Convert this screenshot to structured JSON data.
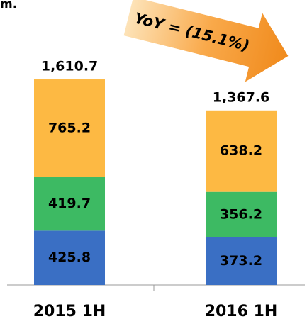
{
  "chart_data": {
    "type": "stacked_bar",
    "unit": "m.",
    "annotation": "YoY = (15.1%)",
    "categories": [
      "2015 1H",
      "2016 1H"
    ],
    "series": [
      {
        "color": "#3a6fc4",
        "values": [
          425.8,
          373.2
        ]
      },
      {
        "color": "#3dba63",
        "values": [
          419.7,
          356.2
        ]
      },
      {
        "color": "#fdb943",
        "values": [
          765.2,
          638.2
        ]
      }
    ],
    "totals": [
      1610.7,
      1367.6
    ],
    "total_labels": [
      "1,610.7",
      "1,367.6"
    ],
    "ylim": [
      0,
      2233
    ]
  }
}
